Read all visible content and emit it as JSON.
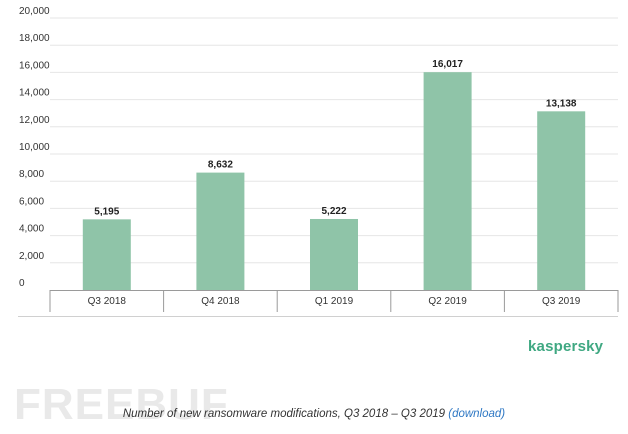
{
  "chart_data": {
    "type": "bar",
    "categories": [
      "Q3 2018",
      "Q4 2018",
      "Q1 2019",
      "Q2 2019",
      "Q3 2019"
    ],
    "values": [
      5195,
      8632,
      5222,
      16017,
      13138
    ],
    "value_labels": [
      "5,195",
      "8,632",
      "5,222",
      "16,017",
      "13,138"
    ],
    "ylim": [
      0,
      20000
    ],
    "yticks": [
      0,
      2000,
      4000,
      6000,
      8000,
      10000,
      12000,
      14000,
      16000,
      18000,
      20000
    ],
    "ytick_labels": [
      "0",
      "2,000",
      "4,000",
      "6,000",
      "8,000",
      "10,000",
      "12,000",
      "14,000",
      "16,000",
      "18,000",
      "20,000"
    ],
    "title": "",
    "xlabel": "",
    "ylabel": "",
    "grid": true,
    "bar_color": "#8fc4a8"
  },
  "brand": "kaspersky",
  "brand_color": "#3fa882",
  "watermark": "FREEBUF",
  "caption": {
    "text": "Number of new ransomware modifications, Q3 2018 – Q3 2019 ",
    "link": "(download)",
    "link_color": "#2f78c4"
  }
}
